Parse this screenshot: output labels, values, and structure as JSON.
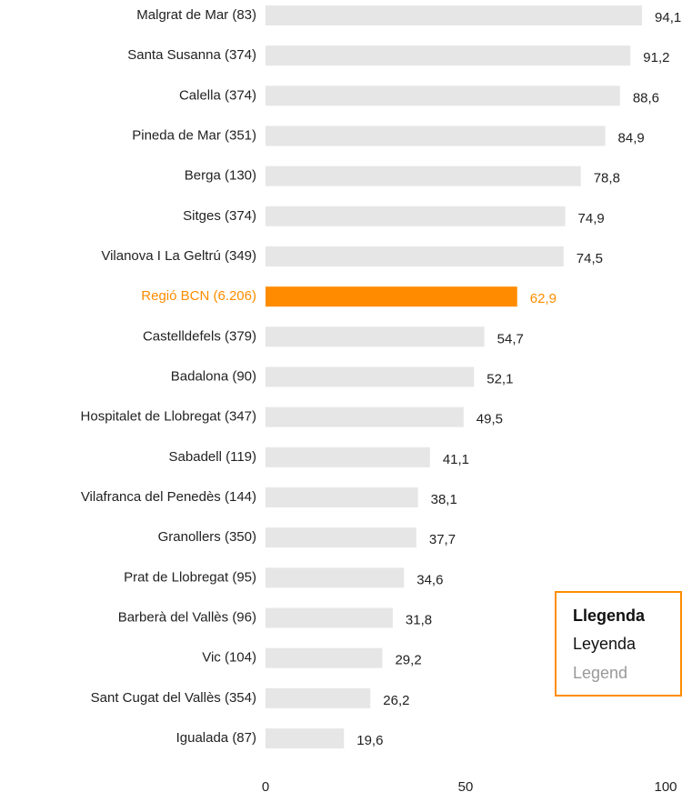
{
  "chart_data": {
    "type": "barh",
    "categories": [
      "Malgrat de Mar (83)",
      "Santa Susanna (374)",
      "Calella (374)",
      "Pineda de Mar (351)",
      "Berga (130)",
      "Sitges (374)",
      "Vilanova I La Geltrú (349)",
      "Regió BCN (6.206)",
      "Castelldefels (379)",
      "Badalona (90)",
      "Hospitalet de Llobregat (347)",
      "Sabadell (119)",
      "Vilafranca del Penedès (144)",
      "Granollers (350)",
      "Prat de Llobregat (95)",
      "Barberà del Vallès (96)",
      "Vic (104)",
      "Sant Cugat del Vallès (354)",
      "Igualada (87)"
    ],
    "values": [
      94.1,
      91.2,
      88.6,
      84.9,
      78.8,
      74.9,
      74.5,
      62.9,
      54.7,
      52.1,
      49.5,
      41.1,
      38.1,
      37.7,
      34.6,
      31.8,
      29.2,
      26.2,
      19.6
    ],
    "value_labels": [
      "94,1",
      "91,2",
      "88,6",
      "84,9",
      "78,8",
      "74,9",
      "74,5",
      "62,9",
      "54,7",
      "52,1",
      "49,5",
      "41,1",
      "38,1",
      "37,7",
      "34,6",
      "31,8",
      "29,2",
      "26,2",
      "19,6"
    ],
    "color": "#e6e6e6",
    "colors": [
      "#e6e6e6",
      "#e6e6e6",
      "#e6e6e6",
      "#e6e6e6",
      "#e6e6e6",
      "#e6e6e6",
      "#e6e6e6",
      "#ff8c00",
      "#e6e6e6",
      "#e6e6e6",
      "#e6e6e6",
      "#e6e6e6",
      "#e6e6e6",
      "#e6e6e6",
      "#e6e6e6",
      "#e6e6e6",
      "#e6e6e6",
      "#e6e6e6",
      "#e6e6e6"
    ],
    "xlim": [
      0,
      100
    ],
    "xticks": [
      0,
      50,
      100
    ],
    "grid": false,
    "legend_text": [
      "Llegenda",
      "Leyenda",
      "Legend"
    ]
  }
}
